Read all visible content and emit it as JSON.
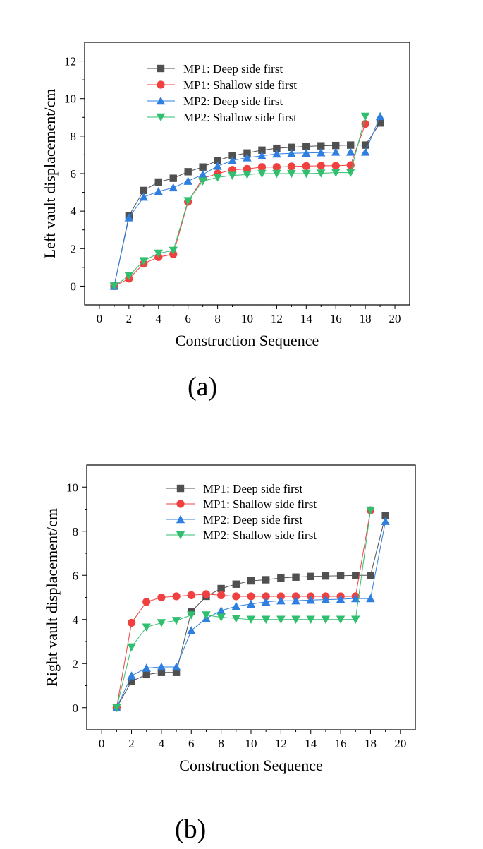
{
  "chart_data": [
    {
      "type": "line",
      "panel_label": "(a)",
      "xlabel": "Construction Sequence",
      "ylabel": "Left vault displacement/cm",
      "xlim": [
        -1,
        21
      ],
      "ylim": [
        -1,
        13
      ],
      "xticks": [
        0,
        2,
        4,
        6,
        8,
        10,
        12,
        14,
        16,
        18,
        20
      ],
      "yticks": [
        0,
        2,
        4,
        6,
        8,
        10,
        12
      ],
      "legend_position": "upper-left",
      "grid": false,
      "series": [
        {
          "name": "MP1: Deep side first",
          "color": "#505050",
          "marker": "square",
          "x": [
            1,
            2,
            3,
            4,
            5,
            6,
            7,
            8,
            9,
            10,
            11,
            12,
            13,
            14,
            15,
            16,
            17,
            18,
            19
          ],
          "y": [
            0,
            3.75,
            5.1,
            5.55,
            5.75,
            6.1,
            6.35,
            6.7,
            6.95,
            7.1,
            7.25,
            7.35,
            7.4,
            7.45,
            7.48,
            7.5,
            7.52,
            7.52,
            8.7
          ]
        },
        {
          "name": "MP1: Shallow side first",
          "color": "#f04040",
          "marker": "circle",
          "x": [
            1,
            2,
            3,
            4,
            5,
            6,
            7,
            8,
            9,
            10,
            11,
            12,
            13,
            14,
            15,
            16,
            17,
            18
          ],
          "y": [
            0,
            0.4,
            1.2,
            1.55,
            1.7,
            4.5,
            5.75,
            6.0,
            6.2,
            6.25,
            6.35,
            6.35,
            6.38,
            6.4,
            6.42,
            6.42,
            6.45,
            8.65
          ]
        },
        {
          "name": "MP2: Deep side first",
          "color": "#2f7fe0",
          "marker": "triangle-up",
          "x": [
            1,
            2,
            3,
            4,
            5,
            6,
            7,
            8,
            9,
            10,
            11,
            12,
            13,
            14,
            15,
            16,
            17,
            18,
            19
          ],
          "y": [
            0,
            3.65,
            4.75,
            5.05,
            5.25,
            5.6,
            5.95,
            6.4,
            6.7,
            6.85,
            6.95,
            7.05,
            7.08,
            7.1,
            7.12,
            7.15,
            7.15,
            7.15,
            9.05
          ]
        },
        {
          "name": "MP2: Shallow side first",
          "color": "#2fbf6f",
          "marker": "triangle-down",
          "x": [
            1,
            2,
            3,
            4,
            5,
            6,
            7,
            8,
            9,
            10,
            11,
            12,
            13,
            14,
            15,
            16,
            17,
            18
          ],
          "y": [
            0,
            0.55,
            1.35,
            1.75,
            1.9,
            4.55,
            5.6,
            5.8,
            5.9,
            5.95,
            6.0,
            6.0,
            6.0,
            6.0,
            6.02,
            6.05,
            6.05,
            9.05
          ]
        }
      ]
    },
    {
      "type": "line",
      "panel_label": "(b)",
      "xlabel": "Construction Sequence",
      "ylabel": "Right vault displacement/cm",
      "xlim": [
        -1,
        21
      ],
      "ylim": [
        -1,
        11
      ],
      "xticks": [
        0,
        2,
        4,
        6,
        8,
        10,
        12,
        14,
        16,
        18,
        20
      ],
      "yticks": [
        0,
        2,
        4,
        6,
        8,
        10
      ],
      "legend_position": "upper-right",
      "grid": false,
      "series": [
        {
          "name": "MP1: Deep side first",
          "color": "#505050",
          "marker": "square",
          "x": [
            1,
            2,
            3,
            4,
            5,
            6,
            7,
            8,
            9,
            10,
            11,
            12,
            13,
            14,
            15,
            16,
            17,
            18,
            19
          ],
          "y": [
            0,
            1.2,
            1.5,
            1.6,
            1.6,
            4.35,
            5.05,
            5.4,
            5.6,
            5.75,
            5.8,
            5.88,
            5.92,
            5.95,
            5.97,
            5.98,
            6.0,
            6.0,
            8.7
          ]
        },
        {
          "name": "MP1: Shallow side first",
          "color": "#f04040",
          "marker": "circle",
          "x": [
            1,
            2,
            3,
            4,
            5,
            6,
            7,
            8,
            9,
            10,
            11,
            12,
            13,
            14,
            15,
            16,
            17,
            18
          ],
          "y": [
            0,
            3.85,
            4.8,
            5.0,
            5.05,
            5.1,
            5.15,
            5.1,
            5.05,
            5.05,
            5.05,
            5.05,
            5.05,
            5.05,
            5.05,
            5.05,
            5.05,
            8.95
          ]
        },
        {
          "name": "MP2: Deep side first",
          "color": "#2f7fe0",
          "marker": "triangle-up",
          "x": [
            1,
            2,
            3,
            4,
            5,
            6,
            7,
            8,
            9,
            10,
            11,
            12,
            13,
            14,
            15,
            16,
            17,
            18,
            19
          ],
          "y": [
            0,
            1.45,
            1.8,
            1.85,
            1.85,
            3.5,
            4.05,
            4.4,
            4.6,
            4.7,
            4.8,
            4.85,
            4.85,
            4.88,
            4.9,
            4.92,
            4.95,
            4.95,
            8.45
          ]
        },
        {
          "name": "MP2: Shallow side first",
          "color": "#2fbf6f",
          "marker": "triangle-down",
          "x": [
            1,
            2,
            3,
            4,
            5,
            6,
            7,
            8,
            9,
            10,
            11,
            12,
            13,
            14,
            15,
            16,
            17,
            18
          ],
          "y": [
            0,
            2.75,
            3.65,
            3.85,
            3.95,
            4.2,
            4.2,
            4.1,
            4.05,
            4.0,
            4.0,
            4.0,
            4.0,
            4.0,
            4.0,
            4.0,
            4.0,
            8.95
          ]
        }
      ]
    }
  ]
}
